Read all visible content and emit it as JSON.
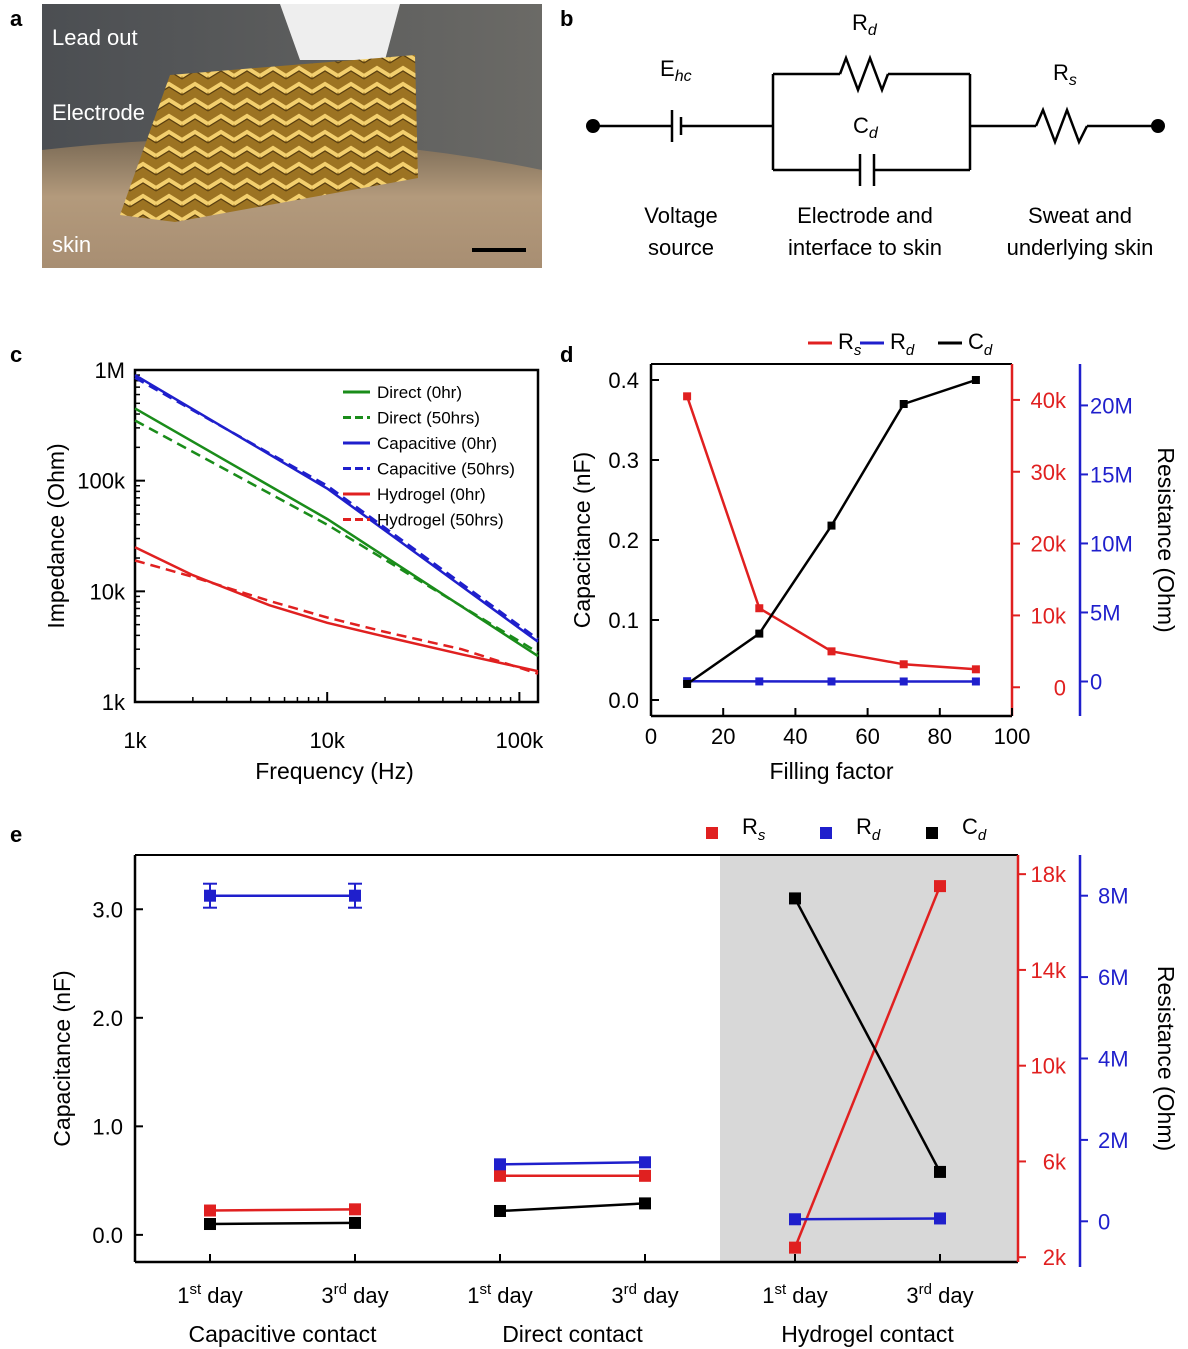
{
  "panels": {
    "a": {
      "letter": "a",
      "labels": [
        "Lead out",
        "Electrode",
        "skin"
      ]
    },
    "b": {
      "letter": "b",
      "components": {
        "ehc": {
          "main": "E",
          "sub": "hc"
        },
        "rd": {
          "main": "R",
          "sub": "d"
        },
        "cd": {
          "main": "C",
          "sub": "d"
        },
        "rs": {
          "main": "R",
          "sub": "s"
        }
      },
      "captions": {
        "source_1": "Voltage",
        "source_2": "source",
        "interface_1": "Electrode and",
        "interface_2": "interface to skin",
        "skin_1": "Sweat and",
        "skin_2": "underlying skin"
      }
    },
    "c": {
      "letter": "c"
    },
    "d": {
      "letter": "d"
    },
    "e": {
      "letter": "e"
    }
  },
  "chart_data": [
    {
      "id": "c",
      "type": "line",
      "title": "",
      "xlabel": "Frequency (Hz)",
      "ylabel": "Impedance (Ohm)",
      "x_scale": "log",
      "y_scale": "log",
      "xlim": [
        1000,
        125000
      ],
      "ylim": [
        1000,
        1000000
      ],
      "x_ticks": [
        {
          "value": 1000,
          "label": "1k"
        },
        {
          "value": 10000,
          "label": "10k"
        },
        {
          "value": 100000,
          "label": "100k"
        }
      ],
      "y_ticks": [
        {
          "value": 1000,
          "label": "1k"
        },
        {
          "value": 10000,
          "label": "10k"
        },
        {
          "value": 100000,
          "label": "100k"
        },
        {
          "value": 1000000,
          "label": "1M"
        }
      ],
      "legend_position": "top-right",
      "series": [
        {
          "name": "Direct (0hr)",
          "color": "#1a8c1a",
          "dash": "solid",
          "x": [
            1000,
            10000,
            125000
          ],
          "y": [
            450000,
            45000,
            2600
          ]
        },
        {
          "name": "Direct (50hrs)",
          "color": "#1a8c1a",
          "dash": "dashed",
          "x": [
            1000,
            10000,
            125000
          ],
          "y": [
            350000,
            40000,
            2800
          ]
        },
        {
          "name": "Capacitive (0hr)",
          "color": "#1f1fcc",
          "dash": "solid",
          "x": [
            1000,
            10000,
            125000
          ],
          "y": [
            900000,
            85000,
            3500
          ]
        },
        {
          "name": "Capacitive (50hrs)",
          "color": "#1f1fcc",
          "dash": "dashed",
          "x": [
            1000,
            10000,
            125000
          ],
          "y": [
            850000,
            90000,
            3700
          ]
        },
        {
          "name": "Hydrogel (0hr)",
          "color": "#e02020",
          "dash": "solid",
          "x": [
            1000,
            2000,
            5000,
            10000,
            20000,
            50000,
            125000
          ],
          "y": [
            25000,
            14000,
            7500,
            5200,
            3900,
            2700,
            1900
          ]
        },
        {
          "name": "Hydrogel (50hrs)",
          "color": "#e02020",
          "dash": "dashed",
          "x": [
            1000,
            2000,
            5000,
            10000,
            20000,
            50000,
            125000
          ],
          "y": [
            19000,
            13500,
            8200,
            5800,
            4300,
            3000,
            1800
          ]
        }
      ]
    },
    {
      "id": "d",
      "type": "line",
      "title": "",
      "xlabel": "Filling factor",
      "ylabel": "Capacitance (nF)",
      "ylabel_right": "Resistance (Ohm)",
      "xlim": [
        0,
        100
      ],
      "ylim": [
        -0.02,
        0.42
      ],
      "y2lim": [
        -4000,
        45000
      ],
      "y3lim": [
        -2500000,
        23000000
      ],
      "x_ticks": [
        {
          "value": 0,
          "label": "0"
        },
        {
          "value": 20,
          "label": "20"
        },
        {
          "value": 40,
          "label": "40"
        },
        {
          "value": 60,
          "label": "60"
        },
        {
          "value": 80,
          "label": "80"
        },
        {
          "value": 100,
          "label": "100"
        }
      ],
      "y_ticks": [
        {
          "value": 0,
          "label": "0.0"
        },
        {
          "value": 0.1,
          "label": "0.1"
        },
        {
          "value": 0.2,
          "label": "0.2"
        },
        {
          "value": 0.3,
          "label": "0.3"
        },
        {
          "value": 0.4,
          "label": "0.4"
        }
      ],
      "y2_ticks": [
        {
          "value": 0,
          "label": "0"
        },
        {
          "value": 10000,
          "label": "10k"
        },
        {
          "value": 20000,
          "label": "20k"
        },
        {
          "value": 30000,
          "label": "30k"
        },
        {
          "value": 40000,
          "label": "40k"
        }
      ],
      "y3_ticks": [
        {
          "value": 0,
          "label": "0"
        },
        {
          "value": 5000000,
          "label": "5M"
        },
        {
          "value": 10000000,
          "label": "10M"
        },
        {
          "value": 15000000,
          "label": "15M"
        },
        {
          "value": 20000000,
          "label": "20M"
        }
      ],
      "legend_position": "top",
      "x": [
        10,
        30,
        50,
        70,
        90
      ],
      "series": [
        {
          "name_main": "R",
          "name_sub": "s",
          "axis": "y2",
          "color": "#e02020",
          "values": [
            40500,
            11000,
            5000,
            3200,
            2500
          ]
        },
        {
          "name_main": "R",
          "name_sub": "d",
          "axis": "y3",
          "color": "#1f1fcc",
          "values": [
            20000,
            5100,
            1700,
            600,
            800
          ]
        },
        {
          "name_main": "C",
          "name_sub": "d",
          "axis": "y1",
          "color": "#000000",
          "values": [
            0.02,
            0.083,
            0.218,
            0.37,
            0.4
          ]
        }
      ]
    },
    {
      "id": "e",
      "type": "line",
      "title": "",
      "ylabel": "Capacitance (nF)",
      "ylabel_right": "Resistance (Ohm)",
      "ylim": [
        -0.25,
        3.5
      ],
      "y2lim": [
        1800,
        18800
      ],
      "y3lim": [
        -1000000,
        9000000
      ],
      "y_ticks": [
        {
          "value": 0,
          "label": "0.0"
        },
        {
          "value": 1,
          "label": "1.0"
        },
        {
          "value": 2,
          "label": "2.0"
        },
        {
          "value": 3,
          "label": "3.0"
        }
      ],
      "y2_ticks": [
        {
          "value": 2000,
          "label": "2k"
        },
        {
          "value": 6000,
          "label": "6k"
        },
        {
          "value": 10000,
          "label": "10k"
        },
        {
          "value": 14000,
          "label": "14k"
        },
        {
          "value": 18000,
          "label": "18k"
        }
      ],
      "y3_ticks": [
        {
          "value": 0,
          "label": "0"
        },
        {
          "value": 2000000,
          "label": "2M"
        },
        {
          "value": 4000000,
          "label": "4M"
        },
        {
          "value": 6000000,
          "label": "6M"
        },
        {
          "value": 8000000,
          "label": "8M"
        }
      ],
      "x_tick_labels": [
        {
          "main": "1",
          "sup": "st",
          "rest": " day"
        },
        {
          "main": "3",
          "sup": "rd",
          "rest": " day"
        },
        {
          "main": "1",
          "sup": "st",
          "rest": " day"
        },
        {
          "main": "3",
          "sup": "rd",
          "rest": " day"
        },
        {
          "main": "1",
          "sup": "st",
          "rest": " day"
        },
        {
          "main": "3",
          "sup": "rd",
          "rest": " day"
        }
      ],
      "groups": [
        "Capacitive contact",
        "Direct contact",
        "Hydrogel contact"
      ],
      "shaded_group": "Hydrogel contact",
      "legend_position": "top-right",
      "series": [
        {
          "name_main": "R",
          "name_sub": "s",
          "axis": "y2",
          "color": "#e02020",
          "values": [
            [
              3950,
              4000
            ],
            [
              5400,
              5400
            ],
            [
              2400,
              17500
            ]
          ]
        },
        {
          "name_main": "R",
          "name_sub": "d",
          "axis": "y3",
          "color": "#1f1fcc",
          "values": [
            [
              8000000,
              8000000
            ],
            [
              1400000,
              1450000
            ],
            [
              50000,
              70000
            ]
          ]
        },
        {
          "name_main": "C",
          "name_sub": "d",
          "axis": "y1",
          "color": "#000000",
          "values": [
            [
              0.1,
              0.11
            ],
            [
              0.22,
              0.29
            ],
            [
              3.1,
              0.58
            ]
          ]
        }
      ]
    }
  ]
}
